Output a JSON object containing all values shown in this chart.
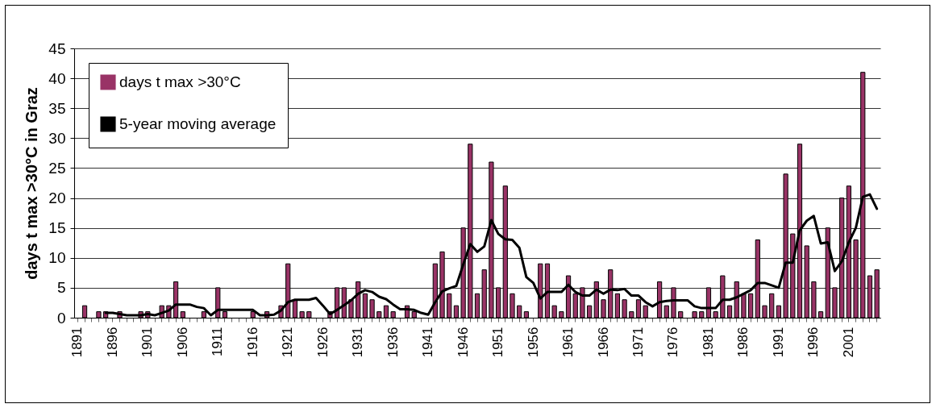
{
  "chart_data": {
    "type": "bar",
    "ylabel": "days t max >30°C in Graz",
    "categories": [
      "1891",
      null,
      null,
      null,
      null,
      "1896",
      null,
      null,
      null,
      null,
      "1901",
      null,
      null,
      null,
      null,
      "1906",
      null,
      null,
      null,
      null,
      "1911",
      null,
      null,
      null,
      null,
      "1916",
      null,
      null,
      null,
      null,
      "1921",
      null,
      null,
      null,
      null,
      "1926",
      null,
      null,
      null,
      null,
      "1931",
      null,
      null,
      null,
      null,
      "1936",
      null,
      null,
      null,
      null,
      "1941",
      null,
      null,
      null,
      null,
      "1946",
      null,
      null,
      null,
      null,
      "1951",
      null,
      null,
      null,
      null,
      "1956",
      null,
      null,
      null,
      null,
      "1961",
      null,
      null,
      null,
      null,
      "1966",
      null,
      null,
      null,
      null,
      "1971",
      null,
      null,
      null,
      null,
      "1976",
      null,
      null,
      null,
      null,
      "1981",
      null,
      null,
      null,
      null,
      "1986",
      null,
      null,
      null,
      null,
      "1991",
      null,
      null,
      null,
      null,
      "1996",
      null,
      null,
      null,
      null,
      "2001",
      null,
      null,
      null,
      null
    ],
    "series": [
      {
        "name": "days t max >30°C",
        "color": "#993366",
        "values": [
          0,
          2,
          0,
          1,
          1,
          0,
          1,
          0,
          0,
          1,
          1,
          0,
          2,
          2,
          6,
          1,
          0,
          0,
          1,
          0,
          5,
          1,
          0,
          0,
          0,
          1,
          0,
          1,
          0,
          2,
          9,
          3,
          1,
          1,
          0,
          0,
          1,
          5,
          5,
          3,
          6,
          4,
          3,
          1,
          2,
          1,
          0,
          2,
          1,
          0,
          0,
          9,
          11,
          4,
          2,
          15,
          29,
          4,
          8,
          26,
          5,
          22,
          4,
          2,
          1,
          0,
          9,
          9,
          2,
          1,
          7,
          4,
          5,
          2,
          6,
          3,
          8,
          4,
          3,
          1,
          3,
          2,
          0,
          6,
          2,
          5,
          1,
          0,
          1,
          1,
          5,
          1,
          7,
          2,
          6,
          4,
          4,
          13,
          2,
          4,
          2,
          24,
          14,
          29,
          12,
          6,
          1,
          15,
          5,
          20,
          22,
          13,
          41,
          7,
          8
        ]
      },
      {
        "name": "5-year moving average",
        "type": "line",
        "color": "#000000",
        "values": [
          null,
          null,
          null,
          null,
          0.8,
          0.8,
          0.6,
          0.4,
          0.4,
          0.4,
          0.6,
          0.4,
          0.8,
          1.2,
          2.2,
          2.2,
          2.2,
          1.8,
          1.6,
          0.4,
          1.3,
          1.3,
          1.3,
          1.3,
          1.3,
          1.3,
          0.4,
          0.4,
          0.5,
          1.2,
          2.6,
          3.0,
          3.0,
          3.0,
          3.3,
          2.0,
          0.6,
          1.3,
          2.1,
          2.9,
          4.0,
          4.6,
          4.3,
          3.5,
          3.1,
          2.2,
          1.4,
          1.4,
          1.3,
          0.8,
          0.5,
          2.6,
          4.4,
          4.9,
          5.3,
          8.9,
          12.3,
          11,
          11.9,
          16.3,
          14,
          13.1,
          13,
          11.7,
          6.8,
          5.8,
          3.2,
          4.3,
          4.3,
          4.3,
          5.5,
          4.3,
          3.7,
          3.7,
          4.7,
          4.0,
          4.7,
          4.6,
          4.8,
          3.7,
          3.7,
          2.6,
          1.9,
          2.6,
          2.8,
          2.9,
          2.9,
          2.9,
          1.9,
          1.6,
          1.6,
          1.6,
          3.0,
          3.0,
          3.4,
          4.0,
          4.6,
          5.8,
          5.8,
          5.4,
          5.0,
          9.2,
          9.2,
          14.6,
          16.2,
          17,
          12.4,
          12.6,
          7.8,
          9.4,
          12.6,
          15,
          20.2,
          20.6,
          18.2
        ]
      }
    ],
    "ylim": [
      0,
      45
    ],
    "yticks": [
      0,
      5,
      10,
      15,
      20,
      25,
      30,
      35,
      40,
      45
    ],
    "grid": "y",
    "legend": "top left"
  }
}
